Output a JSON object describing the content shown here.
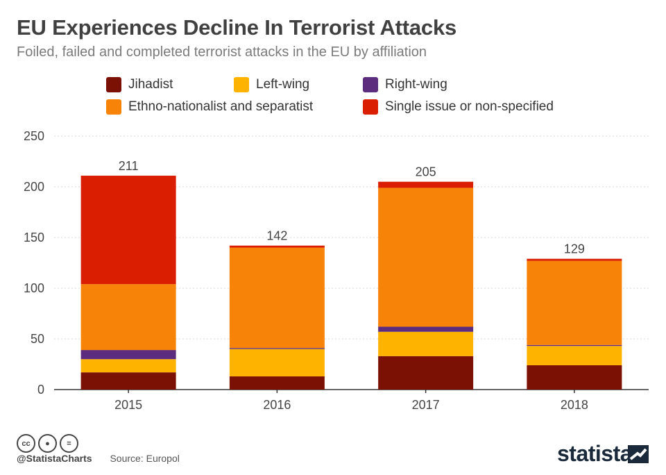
{
  "title": "EU Experiences Decline In Terrorist Attacks",
  "subtitle": "Foiled, failed and completed terrorist attacks in the EU by affiliation",
  "footer": {
    "handle": "@StatistaCharts",
    "source": "Source: Europol",
    "brand": "statista",
    "cc_icons": [
      "cc-icon",
      "by-icon",
      "nd-icon"
    ]
  },
  "chart_data": {
    "type": "bar",
    "stacked": true,
    "categories": [
      "2015",
      "2016",
      "2017",
      "2018"
    ],
    "totals": [
      211,
      142,
      205,
      129
    ],
    "series": [
      {
        "name": "Jihadist",
        "color": "#7b1005",
        "values": [
          17,
          13,
          33,
          24
        ]
      },
      {
        "name": "Left-wing",
        "color": "#fdb300",
        "values": [
          13,
          27,
          24,
          19
        ]
      },
      {
        "name": "Right-wing",
        "color": "#5c2d7e",
        "values": [
          9,
          1,
          5,
          1
        ]
      },
      {
        "name": "Ethno-nationalist and separatist",
        "color": "#f88309",
        "values": [
          65,
          99,
          137,
          83
        ]
      },
      {
        "name": "Single issue or non-specified",
        "color": "#da1e02",
        "values": [
          107,
          2,
          6,
          2
        ]
      }
    ],
    "yticks": [
      0,
      50,
      100,
      150,
      200,
      250
    ],
    "ylim": [
      0,
      250
    ],
    "grid": true,
    "legend_position": "top"
  }
}
